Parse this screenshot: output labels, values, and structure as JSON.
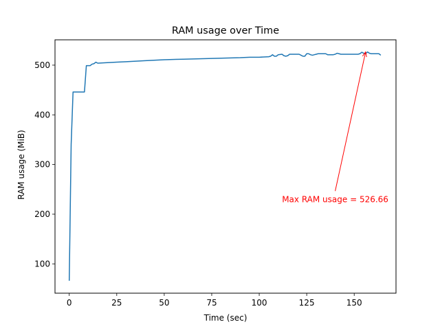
{
  "chart_data": {
    "type": "line",
    "title": "RAM usage over Time",
    "xlabel": "Time (sec)",
    "ylabel": "RAM usage (MiB)",
    "xlim": [
      -7.5,
      172
    ],
    "ylim": [
      41,
      551
    ],
    "xticks": [
      0,
      25,
      50,
      75,
      100,
      125,
      150
    ],
    "yticks": [
      100,
      200,
      300,
      400,
      500
    ],
    "grid": false,
    "legend": "none",
    "series": [
      {
        "color": "#1f77b4",
        "x": [
          0,
          1,
          2,
          3,
          4,
          5,
          6,
          7,
          8,
          9,
          10,
          11,
          12,
          13,
          14,
          15,
          20,
          25,
          30,
          40,
          50,
          60,
          70,
          80,
          90,
          95,
          100,
          105,
          106,
          107,
          108,
          109,
          110,
          112,
          113,
          114,
          115,
          116,
          117,
          118,
          119,
          120,
          121,
          122,
          123,
          124,
          125,
          126,
          127,
          128,
          129,
          130,
          131,
          132,
          133,
          134,
          135,
          136,
          137,
          138,
          139,
          140,
          141,
          142,
          143,
          144,
          145,
          146,
          147,
          148,
          149,
          150,
          151,
          152,
          153,
          154,
          155,
          156,
          157,
          158,
          159,
          160,
          161,
          162,
          163,
          164
        ],
        "y": [
          66,
          340,
          446,
          446,
          446,
          446,
          446,
          446,
          446,
          499,
          499,
          499,
          502,
          503,
          506,
          504,
          505,
          506,
          507,
          509,
          511,
          512,
          513,
          514,
          515,
          516,
          516,
          517,
          518,
          521,
          518,
          518,
          521,
          522,
          519,
          518,
          519,
          522,
          522,
          522,
          522,
          522,
          522,
          520,
          518,
          518,
          523,
          523,
          521,
          520,
          521,
          522,
          523,
          523,
          523,
          523,
          523,
          521,
          521,
          521,
          521,
          522,
          524,
          523,
          522,
          522,
          522,
          522,
          522,
          522,
          522,
          522,
          522,
          522,
          523,
          526,
          524,
          523,
          526.66,
          524,
          523,
          523,
          523,
          523,
          523,
          520
        ]
      }
    ],
    "annotation": {
      "text": "Max RAM usage = 526.66",
      "color": "#ff0000",
      "point": [
        156,
        526.66
      ],
      "text_position": [
        140,
        230
      ]
    }
  }
}
